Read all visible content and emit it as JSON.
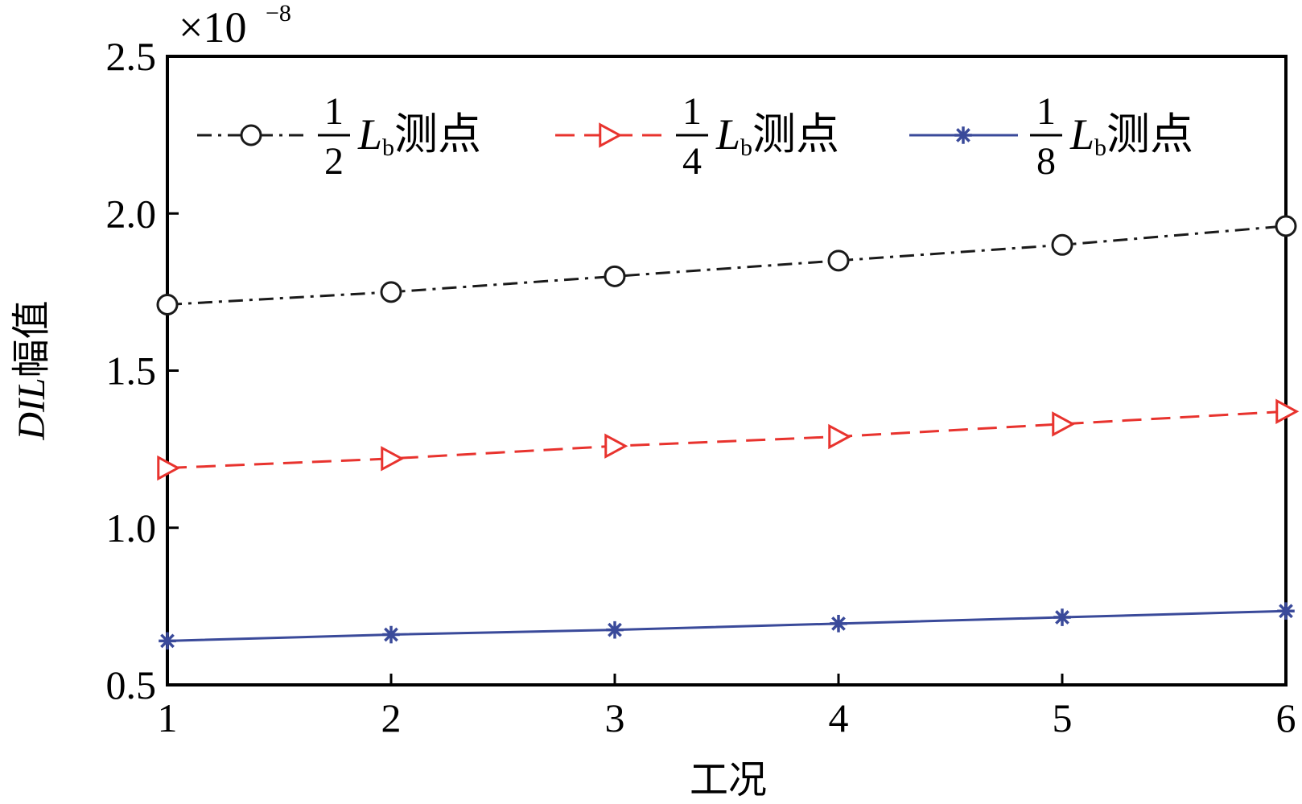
{
  "chart_data": {
    "type": "line",
    "xlabel": "工况",
    "ylabel_var": "DIL",
    "ylabel_rest": "幅值",
    "y_exponent_prefix": "×10",
    "y_exponent_power": "−8",
    "x": [
      1,
      2,
      3,
      4,
      5,
      6
    ],
    "xticks": [
      1,
      2,
      3,
      4,
      5,
      6
    ],
    "xlim": [
      1,
      6
    ],
    "yticks": [
      0.5,
      1.0,
      1.5,
      2.0,
      2.5
    ],
    "ytick_labels": [
      "0.5",
      "1.0",
      "1.5",
      "2.0",
      "2.5"
    ],
    "ylim": [
      0.5,
      2.5
    ],
    "grid": false,
    "legend_position": "top",
    "series": [
      {
        "frac_num": "1",
        "frac_den": "2",
        "var": "L",
        "sub": "b",
        "suffix": "测点",
        "values": [
          1.71,
          1.75,
          1.8,
          1.85,
          1.9,
          1.96
        ],
        "color": "#1a1a1a",
        "dash": "18,8,4,8",
        "marker": "circle"
      },
      {
        "frac_num": "1",
        "frac_den": "4",
        "var": "L",
        "sub": "b",
        "suffix": "测点",
        "values": [
          1.19,
          1.22,
          1.26,
          1.29,
          1.33,
          1.37
        ],
        "color": "#e8332e",
        "dash": "24,12",
        "marker": "triangle-right"
      },
      {
        "frac_num": "1",
        "frac_den": "8",
        "var": "L",
        "sub": "b",
        "suffix": "测点",
        "values": [
          0.64,
          0.66,
          0.675,
          0.695,
          0.715,
          0.735
        ],
        "color": "#3a4a9a",
        "dash": "",
        "marker": "star"
      }
    ]
  }
}
